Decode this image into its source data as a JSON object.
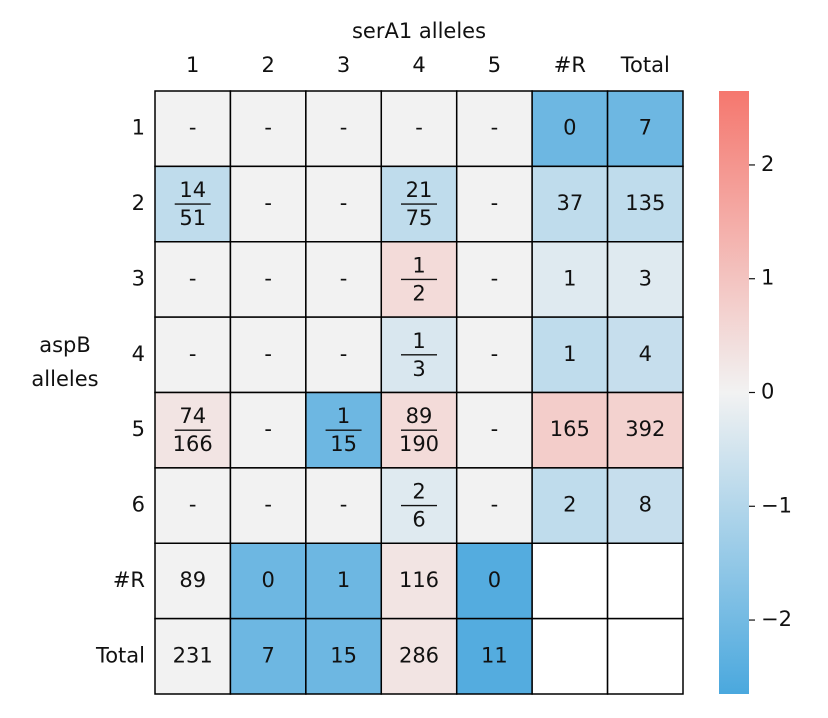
{
  "chart_data": {
    "type": "heatmap",
    "title": "serA1 alleles",
    "ylabel": "aspB alleles",
    "x_categories": [
      "1",
      "2",
      "3",
      "4",
      "5",
      "#R",
      "Total"
    ],
    "y_categories": [
      "1",
      "2",
      "3",
      "4",
      "5",
      "6",
      "#R",
      "Total"
    ],
    "cells": [
      [
        "-",
        "-",
        "-",
        "-",
        "-",
        "0",
        "7"
      ],
      [
        {
          "numerator": "14",
          "denominator": "51"
        },
        "-",
        "-",
        {
          "numerator": "21",
          "denominator": "75"
        },
        "-",
        "37",
        "135"
      ],
      [
        "-",
        "-",
        "-",
        {
          "numerator": "1",
          "denominator": "2"
        },
        "-",
        "1",
        "3"
      ],
      [
        "-",
        "-",
        "-",
        {
          "numerator": "1",
          "denominator": "3"
        },
        "-",
        "1",
        "4"
      ],
      [
        {
          "numerator": "74",
          "denominator": "166"
        },
        "-",
        {
          "numerator": "1",
          "denominator": "15"
        },
        {
          "numerator": "89",
          "denominator": "190"
        },
        "-",
        "165",
        "392"
      ],
      [
        "-",
        "-",
        "-",
        {
          "numerator": "2",
          "denominator": "6"
        },
        "-",
        "2",
        "8"
      ],
      [
        "89",
        "0",
        "1",
        "116",
        "0",
        null,
        null
      ],
      [
        "231",
        "7",
        "15",
        "286",
        "11",
        null,
        null
      ]
    ],
    "z": [
      [
        0,
        0,
        0,
        0,
        0,
        -2.1,
        -2.1
      ],
      [
        -0.8,
        0,
        0,
        -0.8,
        0,
        -0.8,
        -0.8
      ],
      [
        0,
        0,
        0,
        0.5,
        0,
        -0.3,
        -0.3
      ],
      [
        0,
        0,
        0,
        -0.4,
        0,
        -0.8,
        -0.7
      ],
      [
        0.3,
        0,
        -2.1,
        0.5,
        0,
        0.8,
        0.7
      ],
      [
        0,
        0,
        0,
        -0.3,
        0,
        -0.8,
        -0.7
      ],
      [
        0,
        -2.1,
        -2.1,
        0.3,
        -2.5,
        null,
        null
      ],
      [
        0,
        -2.1,
        -2.1,
        0.3,
        -2.5,
        null,
        null
      ]
    ],
    "colormap": [
      "#4aa8de",
      "#f2f2f2",
      "#f5776e"
    ],
    "clim": [
      -2.65,
      2.65
    ],
    "cticks": [
      {
        "value": -2,
        "label": "−2"
      },
      {
        "value": -1,
        "label": "−1"
      },
      0,
      1,
      2
    ]
  }
}
